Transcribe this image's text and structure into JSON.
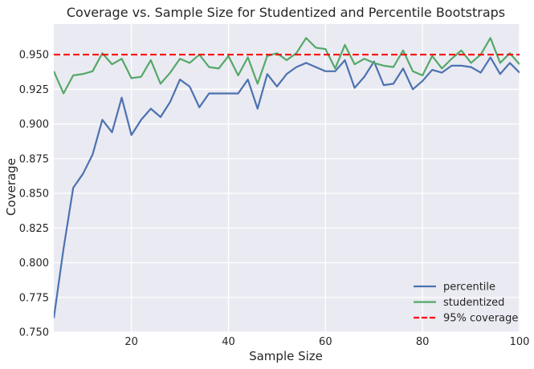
{
  "chart_data": {
    "type": "line",
    "title": "Coverage vs. Sample Size for Studentized and Percentile Bootstraps",
    "xlabel": "Sample Size",
    "ylabel": "Coverage",
    "xlim": [
      4,
      100
    ],
    "ylim": [
      0.75,
      0.972
    ],
    "xticks": [
      20,
      40,
      60,
      80,
      100
    ],
    "xtick_labels": [
      "20",
      "40",
      "60",
      "80",
      "100"
    ],
    "yticks": [
      0.75,
      0.775,
      0.8,
      0.825,
      0.85,
      0.875,
      0.9,
      0.925,
      0.95
    ],
    "ytick_labels": [
      "0.750",
      "0.775",
      "0.800",
      "0.825",
      "0.850",
      "0.875",
      "0.900",
      "0.925",
      "0.950"
    ],
    "grid": true,
    "legend_position": "bottom-right",
    "x": [
      4,
      6,
      8,
      10,
      12,
      14,
      16,
      18,
      20,
      22,
      24,
      26,
      28,
      30,
      32,
      34,
      36,
      38,
      40,
      42,
      44,
      46,
      48,
      50,
      52,
      54,
      56,
      58,
      60,
      62,
      64,
      66,
      68,
      70,
      72,
      74,
      76,
      78,
      80,
      82,
      84,
      86,
      88,
      90,
      92,
      94,
      96,
      98,
      100
    ],
    "series": [
      {
        "name": "percentile",
        "color": "#4c72b0",
        "style": "solid",
        "values": [
          0.76,
          0.81,
          0.854,
          0.864,
          0.878,
          0.903,
          0.894,
          0.919,
          0.892,
          0.903,
          0.911,
          0.905,
          0.916,
          0.932,
          0.927,
          0.912,
          0.922,
          0.922,
          0.922,
          0.922,
          0.932,
          0.911,
          0.936,
          0.927,
          0.936,
          0.941,
          0.944,
          0.941,
          0.938,
          0.938,
          0.946,
          0.926,
          0.934,
          0.945,
          0.928,
          0.929,
          0.94,
          0.925,
          0.931,
          0.939,
          0.937,
          0.942,
          0.942,
          0.941,
          0.937,
          0.948,
          0.936,
          0.944,
          0.937
        ]
      },
      {
        "name": "studentized",
        "color": "#55a868",
        "style": "solid",
        "values": [
          0.938,
          0.922,
          0.935,
          0.936,
          0.938,
          0.951,
          0.943,
          0.947,
          0.933,
          0.934,
          0.946,
          0.929,
          0.937,
          0.947,
          0.944,
          0.95,
          0.941,
          0.94,
          0.949,
          0.935,
          0.948,
          0.929,
          0.949,
          0.951,
          0.946,
          0.951,
          0.962,
          0.955,
          0.954,
          0.94,
          0.957,
          0.943,
          0.947,
          0.944,
          0.942,
          0.941,
          0.953,
          0.938,
          0.935,
          0.949,
          0.94,
          0.947,
          0.953,
          0.944,
          0.95,
          0.962,
          0.944,
          0.951,
          0.943
        ]
      },
      {
        "name": "95% coverage",
        "color": "#ff0000",
        "style": "dashed",
        "constant": 0.95
      }
    ]
  },
  "colors": {
    "plot_background": "#eaeaf2",
    "grid": "#ffffff",
    "text": "#262626"
  }
}
